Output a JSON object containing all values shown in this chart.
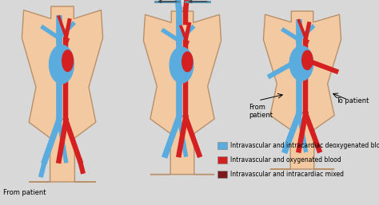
{
  "bg_color": "#d8d8d8",
  "body_fill": "#f2c9a0",
  "body_edge": "#b8906a",
  "blue_blood": "#5aacdf",
  "red_blood": "#d42020",
  "dark_red_blood": "#7a1a1a",
  "legend_items": [
    {
      "label": "Intravascular and intracardiac deoxygenated blood",
      "color": "#5aacdf"
    },
    {
      "label": "Intravascular and oxygenated blood",
      "color": "#d42020"
    },
    {
      "label": "Intravascular and intracardiac mixed",
      "color": "#7a1a1a"
    }
  ]
}
